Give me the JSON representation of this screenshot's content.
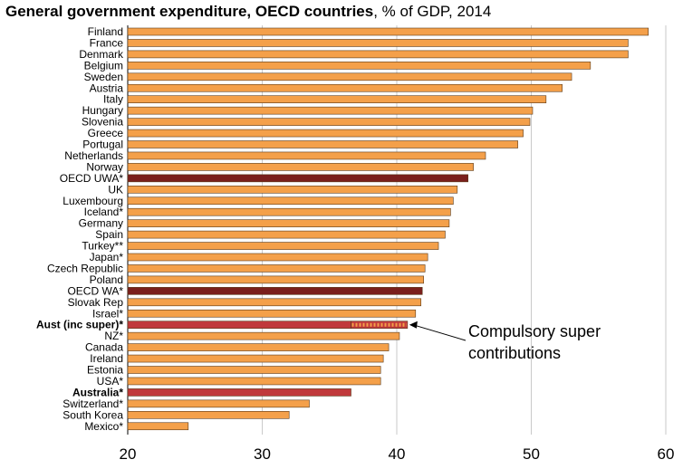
{
  "chart_data": {
    "type": "bar",
    "orientation": "horizontal",
    "title": "General government expenditure, OECD countries",
    "title_suffix": ", % of GDP, 2014",
    "xlabel": "",
    "ylabel": "",
    "xlim": [
      20,
      60
    ],
    "x_ticks": [
      20,
      30,
      40,
      50,
      60
    ],
    "grid": "vertical",
    "categories": [
      "Finland",
      "France",
      "Denmark",
      "Belgium",
      "Sweden",
      "Austria",
      "Italy",
      "Hungary",
      "Slovenia",
      "Greece",
      "Portugal",
      "Netherlands",
      "Norway",
      "OECD UWA*",
      "UK",
      "Luxembourg",
      "Iceland*",
      "Germany",
      "Spain",
      "Turkey**",
      "Japan*",
      "Czech Republic",
      "Poland",
      "OECD WA*",
      "Slovak Rep",
      "Israel*",
      "Aust (inc super)*",
      "NZ*",
      "Canada",
      "Ireland",
      "Estonia",
      "USA*",
      "Australia*",
      "Switzerland*",
      "South Korea",
      "Mexico*"
    ],
    "values": [
      58.7,
      57.2,
      57.2,
      54.4,
      53.0,
      52.3,
      51.1,
      50.1,
      49.9,
      49.4,
      49.0,
      46.6,
      45.7,
      45.3,
      44.5,
      44.2,
      44.0,
      43.9,
      43.6,
      43.1,
      42.3,
      42.1,
      42.0,
      41.9,
      41.8,
      41.4,
      40.8,
      40.2,
      39.4,
      39.0,
      38.8,
      38.8,
      36.6,
      33.5,
      32.0,
      24.5
    ],
    "bold_categories": [
      "Aust (inc super)*",
      "Australia*"
    ],
    "super_contribution": {
      "category": "Aust (inc super)*",
      "from": 36.6,
      "to": 40.8
    },
    "colors": {
      "default": "#F4A04A",
      "oecd": "#7A1F1C",
      "australia": "#C0393B",
      "bar_edge": "#5A3A1A",
      "super_dot": "#F4A04A",
      "grid": "#BDBDBD"
    },
    "annotation": "Compulsory super\ncontributions"
  }
}
